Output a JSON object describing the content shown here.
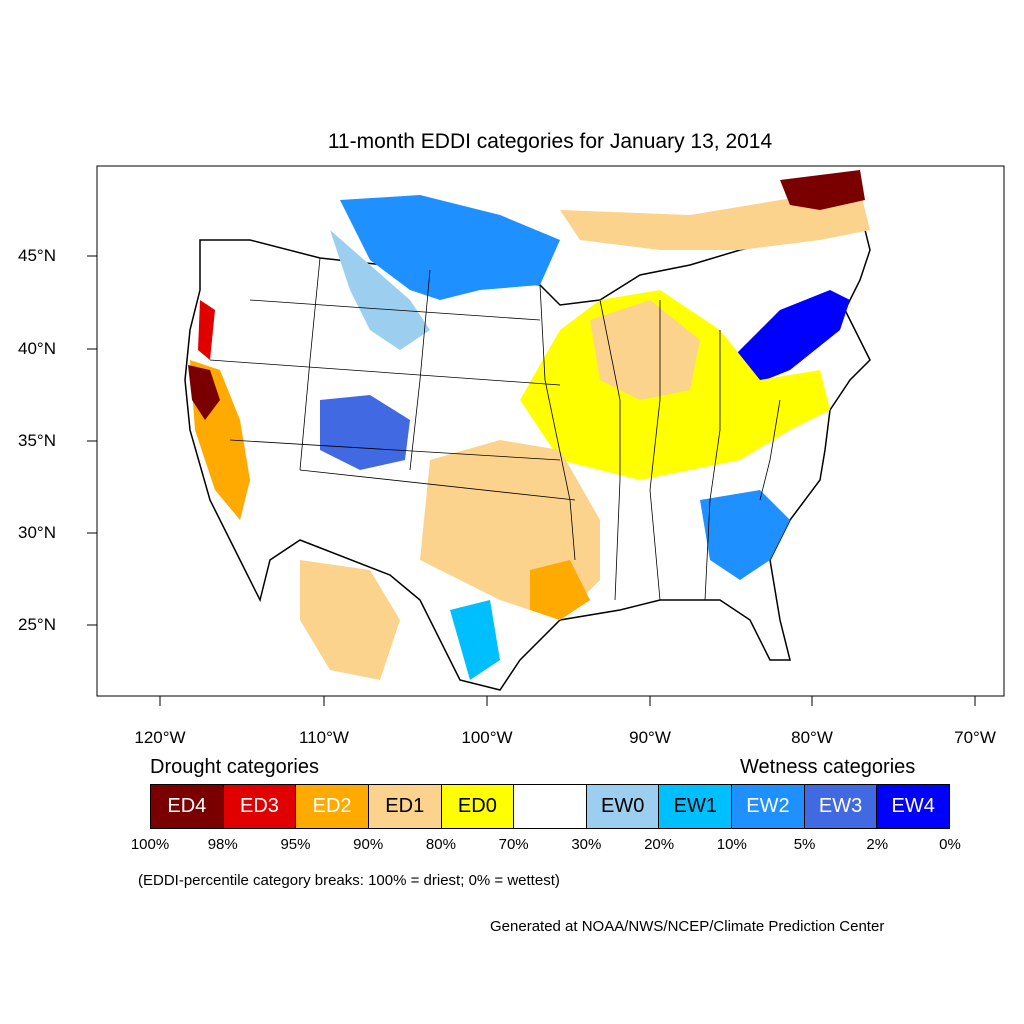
{
  "title": "11-month EDDI categories for January 13, 2014",
  "axes": {
    "lat_labels": [
      "45°N",
      "40°N",
      "35°N",
      "30°N",
      "25°N"
    ],
    "lon_labels": [
      "120°W",
      "110°W",
      "100°W",
      "90°W",
      "80°W",
      "70°W"
    ]
  },
  "legend": {
    "drought_heading": "Drought categories",
    "wetness_heading": "Wetness categories",
    "categories": [
      {
        "label": "ED4",
        "color": "#7a0000",
        "text_color": "#ffffff"
      },
      {
        "label": "ED3",
        "color": "#e00000",
        "text_color": "#ffffff"
      },
      {
        "label": "ED2",
        "color": "#ffaa00",
        "text_color": "#ffffff"
      },
      {
        "label": "ED1",
        "color": "#fcd38c",
        "text_color": "#000000"
      },
      {
        "label": "ED0",
        "color": "#ffff00",
        "text_color": "#000000"
      },
      {
        "label": "",
        "color": "#ffffff",
        "text_color": "#000000"
      },
      {
        "label": "EW0",
        "color": "#9ccef0",
        "text_color": "#000000"
      },
      {
        "label": "EW1",
        "color": "#00bfff",
        "text_color": "#000000"
      },
      {
        "label": "EW2",
        "color": "#1e90ff",
        "text_color": "#ffffff"
      },
      {
        "label": "EW3",
        "color": "#4169e1",
        "text_color": "#ffffff"
      },
      {
        "label": "EW4",
        "color": "#0000ff",
        "text_color": "#ffffff"
      }
    ],
    "breaks": [
      "100%",
      "98%",
      "95%",
      "90%",
      "80%",
      "70%",
      "30%",
      "20%",
      "10%",
      "5%",
      "2%",
      "0%"
    ]
  },
  "note": "(EDDI-percentile category breaks: 100% = driest; 0% = wettest)",
  "credit": "Generated at NOAA/NWS/NCEP/Climate Prediction Center"
}
